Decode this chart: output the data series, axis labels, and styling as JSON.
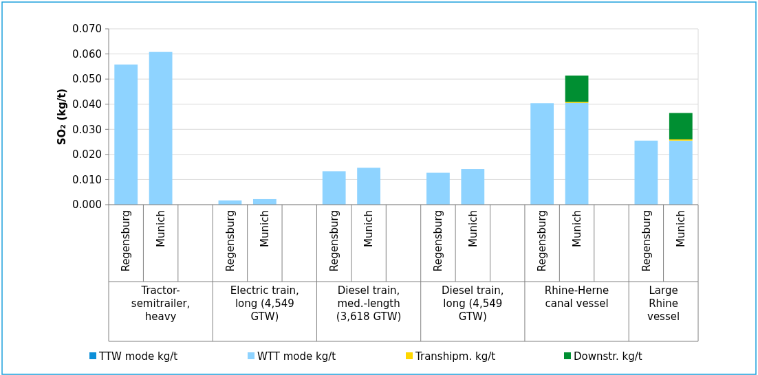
{
  "chart_data": {
    "type": "bar",
    "stacked": true,
    "ylabel": "SO₂ (kg/t)",
    "categories": [
      "Regensburg",
      "Munich",
      null,
      "Regensburg",
      "Munich",
      null,
      "Regensburg",
      "Munich",
      null,
      "Regensburg",
      "Munich",
      null,
      "Regensburg",
      "Munich",
      null,
      "Regensburg",
      "Munich"
    ],
    "series": [
      {
        "name": "TTW mode kg/t",
        "color": "#0d8fd8",
        "values": [
          0,
          0,
          null,
          0,
          0,
          null,
          0,
          0,
          null,
          0,
          0,
          null,
          0,
          0,
          null,
          0,
          0
        ]
      },
      {
        "name": "WTT mode kg/t",
        "color": "#8ed3ff",
        "values": [
          0.0558,
          0.0608,
          null,
          0.0017,
          0.0022,
          null,
          0.0133,
          0.0147,
          null,
          0.0127,
          0.0142,
          null,
          0.0404,
          0.0405,
          null,
          0.0255,
          0.0255
        ]
      },
      {
        "name": "Transhipm. kg/t",
        "color": "#ffd700",
        "values": [
          0,
          0,
          null,
          0,
          0,
          null,
          0,
          0,
          null,
          0,
          0,
          null,
          0,
          0.0004,
          null,
          0,
          0.0005
        ]
      },
      {
        "name": "Downstr. kg/t",
        "color": "#008f32",
        "values": [
          0,
          0,
          null,
          0,
          0,
          null,
          0,
          0,
          null,
          0,
          0,
          null,
          0,
          0.0105,
          null,
          0,
          0.0105
        ]
      }
    ],
    "annotations": [
      "Tractor-semitrailer, heavy",
      "Electric train, long (4,549 GTW)",
      "Diesel train, med.-length (3,618 GTW)",
      "Diesel train, long (4,549 GTW)",
      "Rhine-Herne canal vessel",
      "Large Rhine vessel"
    ],
    "ylim": [
      0,
      0.07
    ],
    "yticks": [
      {
        "value": 0,
        "label": "0.000"
      },
      {
        "value": 0.01,
        "label": "0.010"
      },
      {
        "value": 0.02,
        "label": "0.020"
      },
      {
        "value": 0.03,
        "label": "0.030"
      },
      {
        "value": 0.04,
        "label": "0.040"
      },
      {
        "value": 0.05,
        "label": "0.050"
      },
      {
        "value": 0.06,
        "label": "0.060"
      },
      {
        "value": 0.07,
        "label": "0.070"
      }
    ],
    "grid": "y",
    "legend": "bottom"
  }
}
